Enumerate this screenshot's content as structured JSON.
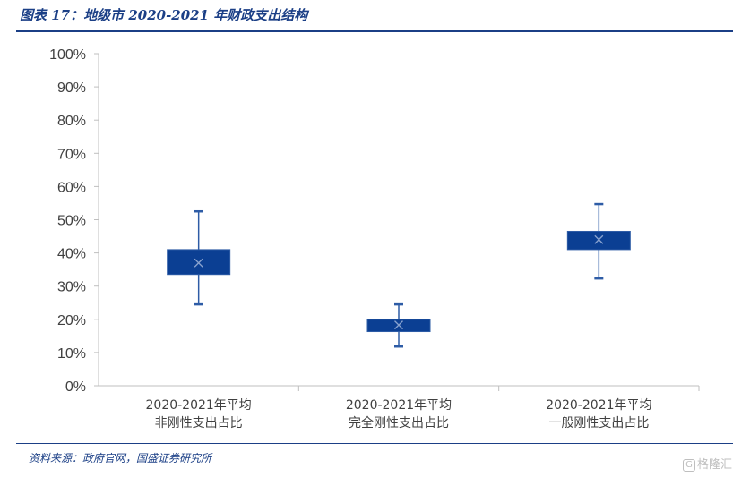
{
  "title": "图表 17：地级市 2020-2021 年财政支出结构",
  "source": "资料来源：政府官网，国盛证券研究所",
  "watermark": "格隆汇",
  "colors": {
    "box": "#0b3f93",
    "whisker": "#2e5ca6",
    "mean_marker": "#8aa3cf",
    "axis": "#bfbfbf",
    "brand": "#1b3f86"
  },
  "chart_data": {
    "type": "box",
    "ylim": [
      0,
      100
    ],
    "y_ticks": [
      "0%",
      "10%",
      "20%",
      "30%",
      "40%",
      "50%",
      "60%",
      "70%",
      "80%",
      "90%",
      "100%"
    ],
    "categories": [
      [
        "2020-2021年平均",
        "非刚性支出占比"
      ],
      [
        "2020-2021年平均",
        "完全刚性支出占比"
      ],
      [
        "2020-2021年平均",
        "一般刚性支出占比"
      ]
    ],
    "boxes": [
      {
        "min": 24.5,
        "q1": 33.5,
        "mean": 37,
        "q3": 41,
        "max": 52.5
      },
      {
        "min": 11.8,
        "q1": 16.3,
        "mean": 18.3,
        "q3": 20,
        "max": 24.5
      },
      {
        "min": 32.3,
        "q1": 41,
        "mean": 44,
        "q3": 46.5,
        "max": 54.7
      }
    ],
    "grid": false,
    "legend": "none"
  }
}
